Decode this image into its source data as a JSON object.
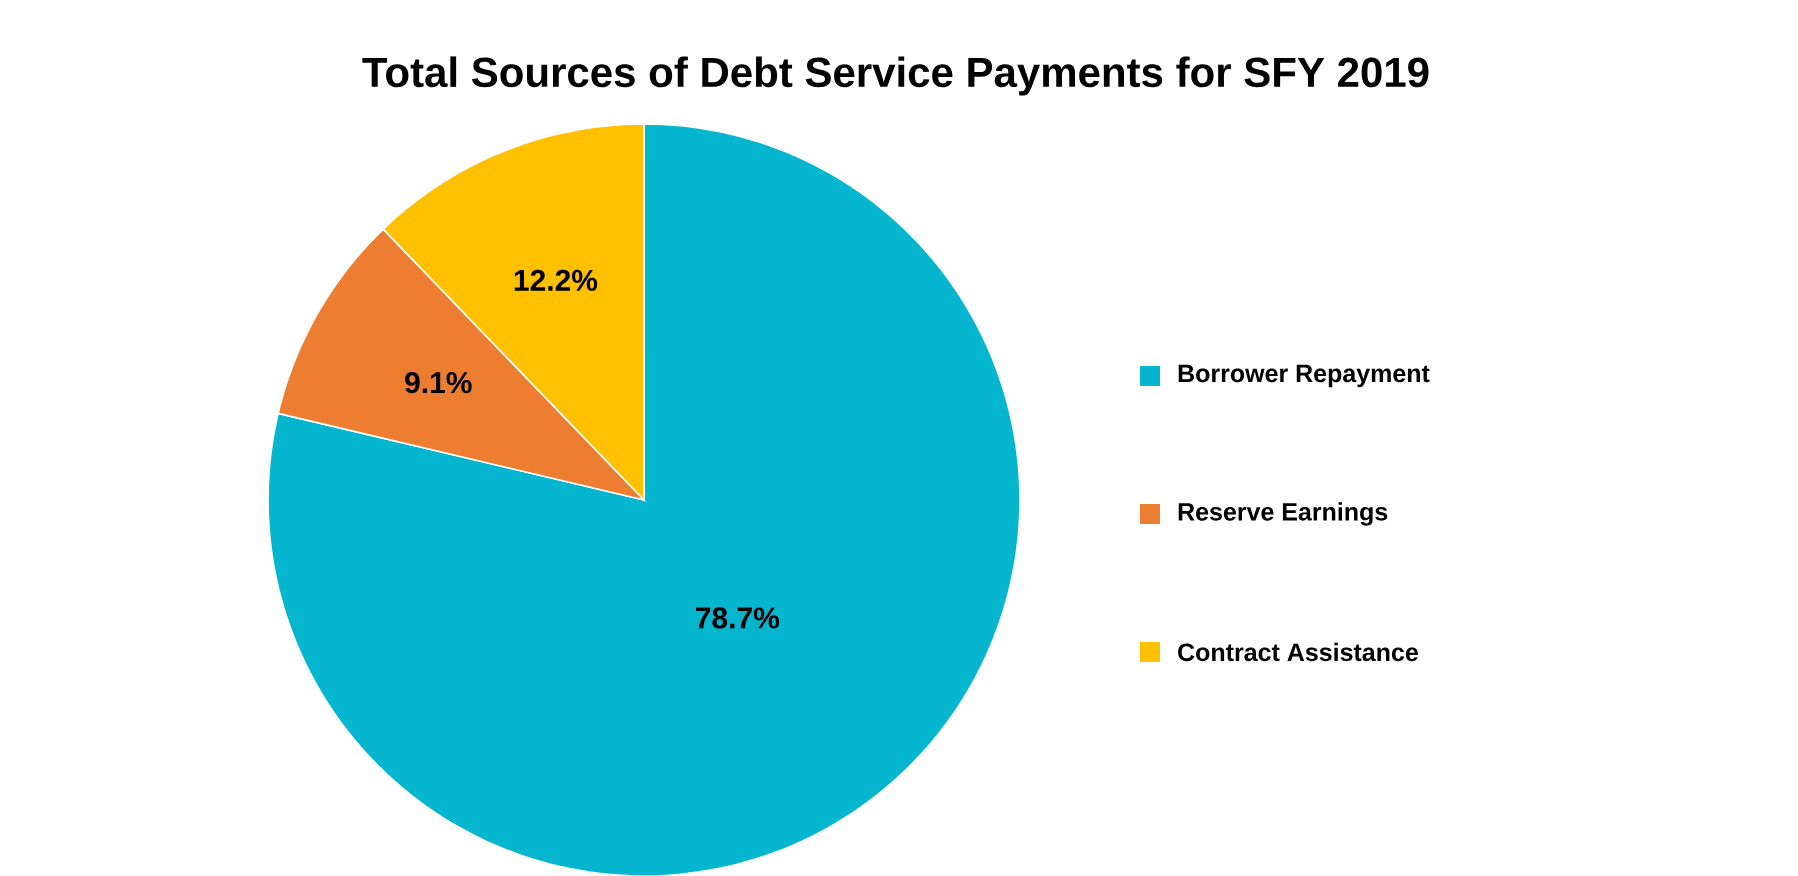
{
  "chart_data": {
    "type": "pie",
    "title": "Total Sources of Debt Service Payments for SFY 2019",
    "categories": [
      "Borrower Repayment",
      "Reserve Earnings",
      "Contract Assistance"
    ],
    "values": [
      78.7,
      9.1,
      12.2
    ],
    "value_labels": [
      "78.7%",
      "9.1%",
      "12.2%"
    ],
    "colors": [
      "#06b6cf",
      "#ed7d31",
      "#ffc000"
    ],
    "legend": "right"
  }
}
